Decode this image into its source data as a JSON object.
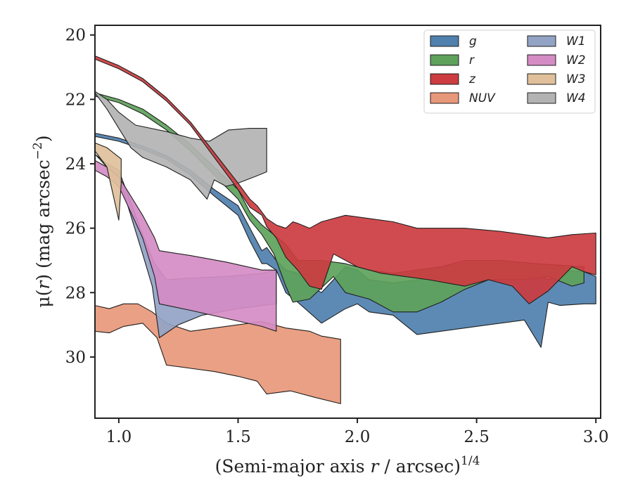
{
  "chart_data": {
    "type": "area",
    "xlabel_main": "(Semi-major axis ",
    "xlabel_var": "r",
    "xlabel_unit": " / arcsec)",
    "xlabel_exp": "1/4",
    "ylabel_main": "μ(",
    "ylabel_var": "r",
    "ylabel_unit": ") (mag arcsec",
    "ylabel_exp": "−2",
    "ylabel_close": ")",
    "xlim": [
      0.9,
      3.02
    ],
    "ylim": [
      31.9,
      19.7
    ],
    "y_inverted": true,
    "xticks": [
      1.0,
      1.5,
      2.0,
      2.5,
      3.0
    ],
    "xtick_labels": [
      "1.0",
      "1.5",
      "2.0",
      "2.5",
      "3.0"
    ],
    "yticks": [
      20,
      22,
      24,
      26,
      28,
      30
    ],
    "ytick_labels": [
      "20",
      "22",
      "24",
      "26",
      "28",
      "30"
    ],
    "grid": false,
    "legend_position": "top-right",
    "legend_columns": 2,
    "series": [
      {
        "name": "NUV",
        "color": "#e8987a",
        "upper": [
          [
            0.9,
            28.4
          ],
          [
            0.96,
            28.5
          ],
          [
            1.02,
            28.35
          ],
          [
            1.08,
            28.35
          ],
          [
            1.14,
            28.6
          ],
          [
            1.2,
            28.95
          ],
          [
            1.3,
            29.2
          ],
          [
            1.4,
            29.1
          ],
          [
            1.5,
            29.0
          ],
          [
            1.6,
            28.9
          ],
          [
            1.7,
            29.1
          ],
          [
            1.8,
            29.2
          ],
          [
            1.85,
            29.35
          ],
          [
            1.93,
            29.45
          ]
        ],
        "lower": [
          [
            0.9,
            29.2
          ],
          [
            0.96,
            29.25
          ],
          [
            1.02,
            29.05
          ],
          [
            1.1,
            28.95
          ],
          [
            1.16,
            29.4
          ],
          [
            1.2,
            30.25
          ],
          [
            1.3,
            30.35
          ],
          [
            1.4,
            30.45
          ],
          [
            1.5,
            30.6
          ],
          [
            1.58,
            30.75
          ],
          [
            1.62,
            31.15
          ],
          [
            1.72,
            31.05
          ],
          [
            1.82,
            31.25
          ],
          [
            1.93,
            31.45
          ]
        ]
      },
      {
        "name": "W1",
        "color": "#93a3c5",
        "upper": [
          [
            0.9,
            23.7
          ],
          [
            0.95,
            24.0
          ],
          [
            1.0,
            24.2
          ],
          [
            1.05,
            25.2
          ],
          [
            1.1,
            26.2
          ],
          [
            1.15,
            27.1
          ],
          [
            1.2,
            27.6
          ],
          [
            1.3,
            27.55
          ],
          [
            1.45,
            27.5
          ],
          [
            1.6,
            27.4
          ],
          [
            1.66,
            27.3
          ]
        ],
        "lower": [
          [
            0.9,
            23.7
          ],
          [
            0.95,
            24.1
          ],
          [
            1.0,
            24.4
          ],
          [
            1.05,
            25.6
          ],
          [
            1.1,
            26.8
          ],
          [
            1.14,
            27.8
          ],
          [
            1.17,
            29.4
          ],
          [
            1.25,
            29.0
          ],
          [
            1.35,
            28.7
          ],
          [
            1.5,
            28.5
          ],
          [
            1.6,
            28.4
          ],
          [
            1.66,
            28.35
          ]
        ]
      },
      {
        "name": "W2",
        "color": "#d48cc4",
        "upper": [
          [
            0.9,
            23.9
          ],
          [
            0.95,
            24.1
          ],
          [
            1.0,
            24.4
          ],
          [
            1.05,
            25.0
          ],
          [
            1.1,
            25.6
          ],
          [
            1.15,
            26.3
          ],
          [
            1.17,
            26.7
          ],
          [
            1.3,
            26.85
          ],
          [
            1.45,
            27.05
          ],
          [
            1.6,
            27.3
          ],
          [
            1.66,
            27.3
          ]
        ],
        "lower": [
          [
            0.9,
            24.2
          ],
          [
            0.95,
            24.4
          ],
          [
            1.0,
            24.7
          ],
          [
            1.05,
            25.5
          ],
          [
            1.1,
            26.3
          ],
          [
            1.15,
            27.5
          ],
          [
            1.17,
            28.35
          ],
          [
            1.3,
            28.55
          ],
          [
            1.45,
            28.8
          ],
          [
            1.6,
            29.05
          ],
          [
            1.66,
            29.2
          ]
        ]
      },
      {
        "name": "W3",
        "color": "#dfc09a",
        "upper": [
          [
            0.9,
            23.35
          ],
          [
            0.95,
            23.5
          ],
          [
            1.01,
            23.85
          ]
        ],
        "lower": [
          [
            0.9,
            23.6
          ],
          [
            0.95,
            24.1
          ],
          [
            1.0,
            25.75
          ],
          [
            1.01,
            24.6
          ]
        ]
      },
      {
        "name": "g",
        "color": "#4f80ae",
        "upper": [
          [
            0.9,
            23.05
          ],
          [
            1.0,
            23.2
          ],
          [
            1.1,
            23.45
          ],
          [
            1.2,
            23.75
          ],
          [
            1.3,
            24.2
          ],
          [
            1.4,
            24.8
          ],
          [
            1.5,
            25.3
          ],
          [
            1.55,
            26.0
          ],
          [
            1.6,
            26.7
          ],
          [
            1.62,
            26.6
          ],
          [
            1.66,
            27.0
          ],
          [
            1.7,
            27.3
          ],
          [
            1.75,
            27.4
          ],
          [
            1.8,
            27.8
          ],
          [
            1.85,
            28.0
          ],
          [
            1.95,
            27.2
          ],
          [
            2.0,
            27.3
          ],
          [
            2.05,
            27.6
          ],
          [
            2.15,
            27.7
          ],
          [
            2.25,
            27.6
          ],
          [
            2.35,
            27.55
          ],
          [
            2.45,
            27.5
          ],
          [
            2.55,
            27.4
          ],
          [
            2.65,
            27.4
          ],
          [
            2.75,
            27.3
          ],
          [
            2.8,
            27.6
          ],
          [
            2.85,
            27.3
          ],
          [
            2.95,
            27.35
          ],
          [
            3.0,
            27.5
          ]
        ],
        "lower": [
          [
            0.9,
            23.15
          ],
          [
            1.0,
            23.3
          ],
          [
            1.1,
            23.55
          ],
          [
            1.2,
            23.85
          ],
          [
            1.3,
            24.35
          ],
          [
            1.4,
            25.0
          ],
          [
            1.5,
            25.6
          ],
          [
            1.55,
            26.4
          ],
          [
            1.6,
            27.1
          ],
          [
            1.62,
            27.1
          ],
          [
            1.66,
            27.3
          ],
          [
            1.7,
            28.0
          ],
          [
            1.75,
            28.3
          ],
          [
            1.85,
            28.95
          ],
          [
            1.95,
            28.5
          ],
          [
            2.0,
            28.35
          ],
          [
            2.05,
            28.6
          ],
          [
            2.15,
            28.7
          ],
          [
            2.25,
            29.3
          ],
          [
            2.35,
            29.2
          ],
          [
            2.45,
            29.1
          ],
          [
            2.55,
            29.0
          ],
          [
            2.7,
            28.85
          ],
          [
            2.77,
            29.7
          ],
          [
            2.8,
            28.3
          ],
          [
            2.85,
            28.4
          ],
          [
            2.95,
            28.35
          ],
          [
            3.0,
            28.35
          ]
        ]
      },
      {
        "name": "r",
        "color": "#5ea25b",
        "upper": [
          [
            0.9,
            21.8
          ],
          [
            1.0,
            22.0
          ],
          [
            1.1,
            22.3
          ],
          [
            1.2,
            22.8
          ],
          [
            1.3,
            23.4
          ],
          [
            1.4,
            24.1
          ],
          [
            1.5,
            24.8
          ],
          [
            1.55,
            25.5
          ],
          [
            1.6,
            25.9
          ],
          [
            1.65,
            26.2
          ],
          [
            1.7,
            26.5
          ],
          [
            1.75,
            27.0
          ],
          [
            1.85,
            27.0
          ],
          [
            1.95,
            27.1
          ],
          [
            2.05,
            27.3
          ],
          [
            2.15,
            27.4
          ],
          [
            2.25,
            27.3
          ],
          [
            2.35,
            27.2
          ],
          [
            2.45,
            27.0
          ],
          [
            2.6,
            27.0
          ],
          [
            2.75,
            27.1
          ],
          [
            2.95,
            27.2
          ]
        ],
        "lower": [
          [
            0.9,
            21.9
          ],
          [
            1.0,
            22.1
          ],
          [
            1.1,
            22.45
          ],
          [
            1.2,
            22.95
          ],
          [
            1.3,
            23.6
          ],
          [
            1.4,
            24.35
          ],
          [
            1.5,
            25.1
          ],
          [
            1.55,
            25.75
          ],
          [
            1.6,
            26.2
          ],
          [
            1.65,
            26.8
          ],
          [
            1.7,
            27.8
          ],
          [
            1.73,
            28.3
          ],
          [
            1.8,
            28.2
          ],
          [
            1.9,
            27.5
          ],
          [
            1.95,
            28.0
          ],
          [
            2.05,
            28.2
          ],
          [
            2.15,
            28.6
          ],
          [
            2.25,
            28.6
          ],
          [
            2.35,
            28.3
          ],
          [
            2.45,
            27.9
          ],
          [
            2.55,
            27.6
          ],
          [
            2.7,
            27.6
          ],
          [
            2.8,
            27.5
          ],
          [
            2.9,
            27.8
          ],
          [
            2.95,
            27.7
          ]
        ]
      },
      {
        "name": "W4",
        "color": "#b3b3b3",
        "upper": [
          [
            0.9,
            21.75
          ],
          [
            0.95,
            22.0
          ],
          [
            1.0,
            22.4
          ],
          [
            1.07,
            22.8
          ],
          [
            1.2,
            23.0
          ],
          [
            1.3,
            23.2
          ],
          [
            1.38,
            23.3
          ],
          [
            1.46,
            22.95
          ],
          [
            1.55,
            22.9
          ],
          [
            1.62,
            22.9
          ]
        ],
        "lower": [
          [
            0.9,
            21.8
          ],
          [
            0.95,
            22.3
          ],
          [
            1.0,
            22.9
          ],
          [
            1.05,
            23.5
          ],
          [
            1.1,
            23.8
          ],
          [
            1.2,
            24.1
          ],
          [
            1.3,
            24.5
          ],
          [
            1.37,
            25.1
          ],
          [
            1.4,
            24.5
          ],
          [
            1.45,
            24.7
          ],
          [
            1.5,
            24.6
          ],
          [
            1.57,
            24.4
          ],
          [
            1.62,
            24.25
          ]
        ]
      },
      {
        "name": "z",
        "color": "#cc3c40",
        "upper": [
          [
            0.9,
            20.65
          ],
          [
            1.0,
            20.95
          ],
          [
            1.1,
            21.35
          ],
          [
            1.2,
            21.95
          ],
          [
            1.3,
            22.7
          ],
          [
            1.4,
            23.65
          ],
          [
            1.5,
            24.6
          ],
          [
            1.55,
            25.1
          ],
          [
            1.58,
            25.3
          ],
          [
            1.62,
            25.7
          ],
          [
            1.66,
            25.9
          ],
          [
            1.7,
            26.0
          ],
          [
            1.73,
            25.8
          ],
          [
            1.75,
            25.85
          ],
          [
            1.8,
            26.0
          ],
          [
            1.85,
            25.8
          ],
          [
            1.95,
            25.6
          ],
          [
            2.05,
            25.7
          ],
          [
            2.15,
            25.8
          ],
          [
            2.25,
            26.0
          ],
          [
            2.35,
            26.0
          ],
          [
            2.45,
            26.0
          ],
          [
            2.6,
            26.1
          ],
          [
            2.7,
            26.2
          ],
          [
            2.8,
            26.3
          ],
          [
            2.9,
            26.2
          ],
          [
            3.0,
            26.15
          ]
        ],
        "lower": [
          [
            0.9,
            20.75
          ],
          [
            1.0,
            21.05
          ],
          [
            1.1,
            21.45
          ],
          [
            1.2,
            22.05
          ],
          [
            1.3,
            22.8
          ],
          [
            1.4,
            23.8
          ],
          [
            1.5,
            24.8
          ],
          [
            1.55,
            25.35
          ],
          [
            1.6,
            25.6
          ],
          [
            1.62,
            25.95
          ],
          [
            1.66,
            26.3
          ],
          [
            1.7,
            26.9
          ],
          [
            1.75,
            27.3
          ],
          [
            1.8,
            27.8
          ],
          [
            1.85,
            27.9
          ],
          [
            1.9,
            26.8
          ],
          [
            2.0,
            27.2
          ],
          [
            2.1,
            27.4
          ],
          [
            2.2,
            27.5
          ],
          [
            2.3,
            27.6
          ],
          [
            2.45,
            27.8
          ],
          [
            2.55,
            27.6
          ],
          [
            2.65,
            27.8
          ],
          [
            2.72,
            28.35
          ],
          [
            2.8,
            27.95
          ],
          [
            2.9,
            27.2
          ],
          [
            2.95,
            27.35
          ],
          [
            3.0,
            27.45
          ]
        ]
      }
    ],
    "legend": [
      {
        "label": "g",
        "color": "#4f80ae"
      },
      {
        "label": "r",
        "color": "#5ea25b"
      },
      {
        "label": "z",
        "color": "#cc3c40"
      },
      {
        "label": "NUV",
        "color": "#e8987a"
      },
      {
        "label": "W1",
        "color": "#93a3c5"
      },
      {
        "label": "W2",
        "color": "#d48cc4"
      },
      {
        "label": "W3",
        "color": "#dfc09a"
      },
      {
        "label": "W4",
        "color": "#b3b3b3"
      }
    ]
  }
}
